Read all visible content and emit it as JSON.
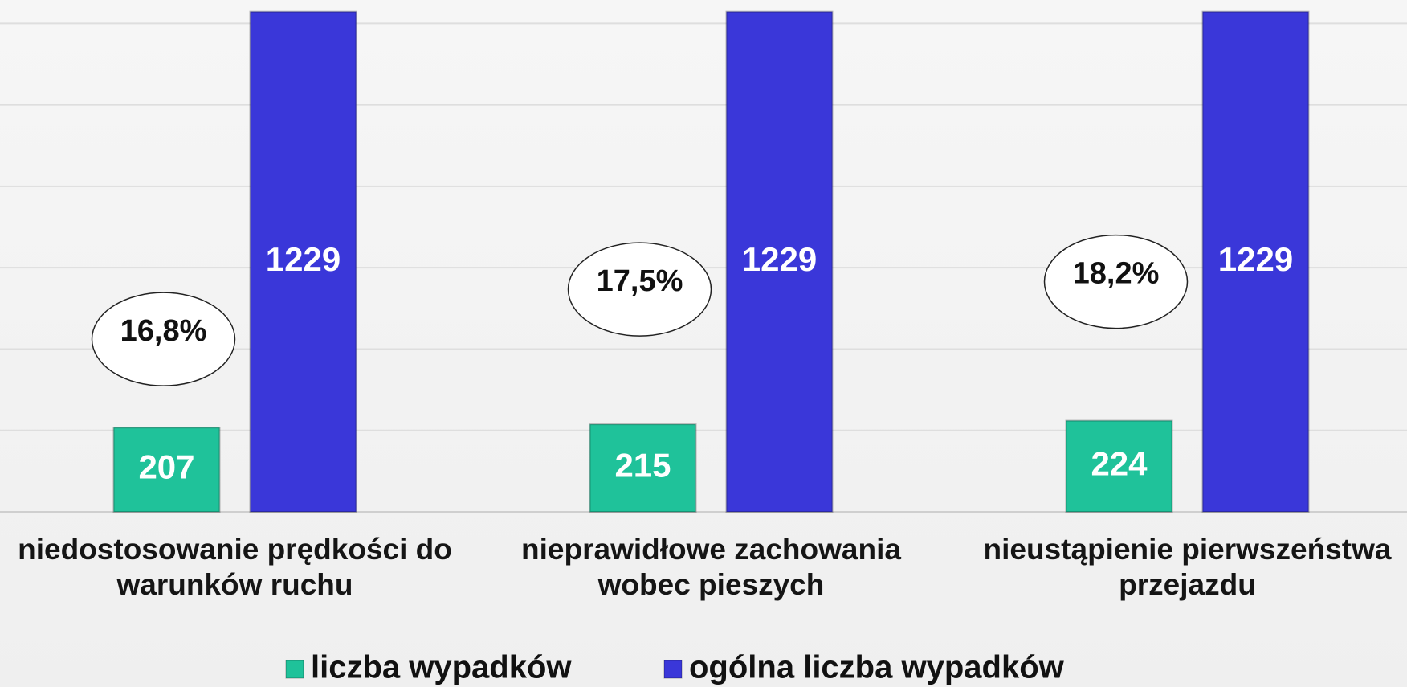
{
  "chart_data": {
    "type": "bar",
    "categories": [
      "niedostosowanie prędkości do\nwarunków ruchu",
      "nieprawidłowe zachowania\nwobec pieszych",
      "nieustąpienie pierwszeństwa\nprzejazdu"
    ],
    "series": [
      {
        "name": "liczba wypadków",
        "color": "#1fc29a",
        "values": [
          207,
          215,
          224
        ]
      },
      {
        "name": "ogólna liczba wypadków",
        "color": "#3a37d9",
        "values": [
          1229,
          1229,
          1229
        ]
      }
    ],
    "annotations": {
      "values": [
        16.8,
        17.5,
        18.2
      ],
      "value_labels": [
        "16,8%",
        "17,5%",
        "18,2%"
      ]
    },
    "ylim": [
      0,
      1258
    ],
    "yticks": [
      0,
      200,
      400,
      600,
      800,
      1000,
      1200
    ],
    "grid": true
  }
}
